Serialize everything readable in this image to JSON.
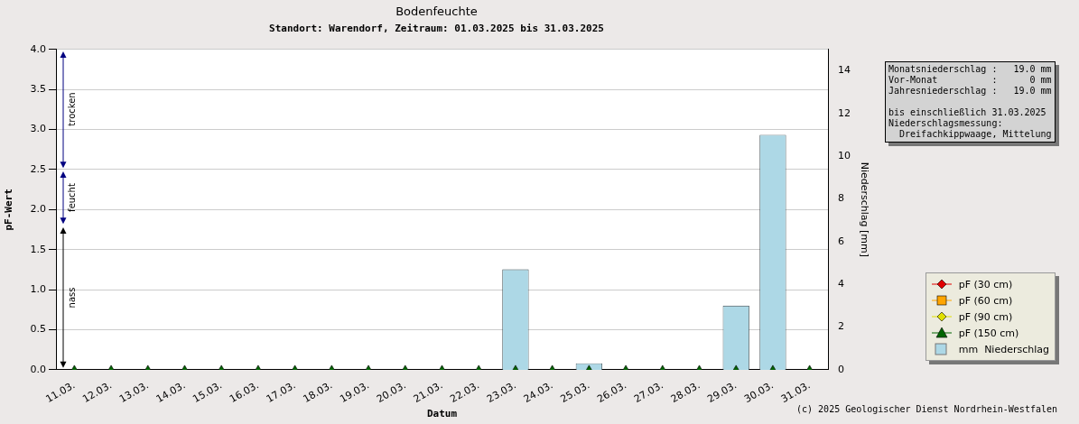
{
  "chart_data": {
    "type": "scatter",
    "title": "Bodenfeuchte",
    "subtitle": "Standort: Warendorf, Zeitraum: 01.03.2025 bis 31.03.2025",
    "xlabel": "Datum",
    "ylabel": "pF-Wert",
    "y2label": "Niederschlag [mm]",
    "categories": [
      "11.03.",
      "12.03.",
      "13.03.",
      "14.03.",
      "15.03.",
      "16.03.",
      "17.03.",
      "18.03.",
      "19.03.",
      "20.03.",
      "21.03.",
      "22.03.",
      "23.03.",
      "24.03.",
      "25.03.",
      "26.03.",
      "27.03.",
      "28.03.",
      "29.03.",
      "30.03.",
      "31.03."
    ],
    "series": [
      {
        "name": "mm  Niederschlag",
        "type": "bar",
        "axis": "y2",
        "color": "#add8e6",
        "values": [
          0,
          0,
          0,
          0,
          0,
          0,
          0,
          0,
          0,
          0,
          0,
          0,
          4.7,
          0,
          0.3,
          0,
          0,
          0,
          3.0,
          11.0,
          0
        ]
      },
      {
        "name": "pF (30 cm)",
        "color": "#e00000",
        "marker": "diamond",
        "values": [
          null,
          null,
          null,
          null,
          null,
          null,
          null,
          null,
          null,
          null,
          null,
          null,
          null,
          null,
          null,
          null,
          null,
          null,
          null,
          null,
          null
        ]
      },
      {
        "name": "pF (60 cm)",
        "color": "#ffa500",
        "marker": "square",
        "values": [
          null,
          null,
          null,
          null,
          null,
          null,
          null,
          null,
          null,
          null,
          null,
          null,
          null,
          null,
          null,
          null,
          null,
          null,
          null,
          null,
          null
        ]
      },
      {
        "name": "pF (90 cm)",
        "color": "#e0e000",
        "marker": "diamond",
        "values": [
          null,
          null,
          null,
          null,
          null,
          null,
          null,
          null,
          null,
          null,
          null,
          null,
          null,
          null,
          null,
          null,
          null,
          null,
          null,
          null,
          null
        ]
      },
      {
        "name": "pF (150 cm)",
        "color": "#006400",
        "marker": "triangle",
        "values": [
          0,
          0,
          0,
          0,
          0,
          0,
          0,
          0,
          0,
          0,
          0,
          0,
          0,
          0,
          0,
          0,
          0,
          0,
          0,
          0,
          0
        ]
      }
    ],
    "ylim": [
      0,
      4
    ],
    "yticks": [
      {
        "value": 0,
        "label": "0.0"
      },
      {
        "value": 0.5,
        "label": "0.5"
      },
      {
        "value": 1,
        "label": "1.0"
      },
      {
        "value": 1.5,
        "label": "1.5"
      },
      {
        "value": 2,
        "label": "2.0"
      },
      {
        "value": 2.5,
        "label": "2.5"
      },
      {
        "value": 3,
        "label": "3.0"
      },
      {
        "value": 3.5,
        "label": "3.5"
      },
      {
        "value": 4,
        "label": "4.0"
      }
    ],
    "y2lim": [
      0,
      15
    ],
    "y2ticks": [
      0,
      2,
      4,
      6,
      8,
      10,
      12,
      14
    ],
    "grid": "y",
    "legend": "bottom right",
    "annotations": [
      "trocken",
      "feucht",
      "nass",
      "Monatsniederschlag :   19.0 mm",
      "Vor-Monat          :      0 mm",
      "Jahresniederschlag :   19.0 mm",
      "bis einschließlich 31.03.2025",
      "Niederschlagsmessung:",
      "  Dreifachkippwaage, Mittelung",
      "(c) 2025 Geologischer Dienst Nordrhein-Westfalen"
    ]
  }
}
